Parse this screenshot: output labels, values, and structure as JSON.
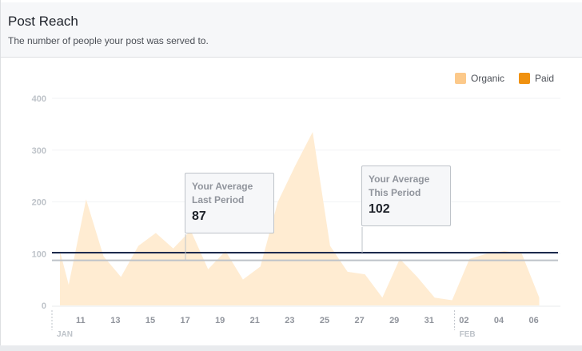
{
  "header": {
    "title": "Post Reach",
    "subtitle": "The number of people your post was served to."
  },
  "legend": [
    {
      "label": "Organic",
      "color": "#fcc98a"
    },
    {
      "label": "Paid",
      "color": "#f0910f"
    }
  ],
  "callouts": {
    "last": {
      "line1": "Your Average",
      "line2": "Last Period",
      "value": "87"
    },
    "this": {
      "line1": "Your Average",
      "line2": "This Period",
      "value": "102"
    }
  },
  "chart_data": {
    "type": "area",
    "title": "Post Reach",
    "ylim": [
      0,
      400
    ],
    "yticks": [
      0,
      100,
      200,
      300,
      400
    ],
    "x_tick_labels": [
      "11",
      "13",
      "15",
      "17",
      "19",
      "21",
      "23",
      "25",
      "27",
      "29",
      "31",
      "02",
      "04",
      "06"
    ],
    "x_tick_day_index": [
      1,
      3,
      5,
      7,
      9,
      11,
      13,
      15,
      17,
      19,
      21,
      23,
      25,
      27
    ],
    "month_labels": [
      {
        "label": "JAN",
        "day_index": 0
      },
      {
        "label": "FEB",
        "day_index": 22
      }
    ],
    "series": [
      {
        "name": "Organic",
        "color": "#fcc98a",
        "points": [
          [
            0,
            105
          ],
          [
            0.5,
            40
          ],
          [
            1.5,
            205
          ],
          [
            2.5,
            95
          ],
          [
            3.5,
            55
          ],
          [
            4.5,
            115
          ],
          [
            5.5,
            140
          ],
          [
            6.5,
            110
          ],
          [
            7.5,
            145
          ],
          [
            8.5,
            70
          ],
          [
            9.5,
            105
          ],
          [
            10.5,
            50
          ],
          [
            11.5,
            75
          ],
          [
            12.5,
            200
          ],
          [
            13.5,
            270
          ],
          [
            14.5,
            335
          ],
          [
            15.5,
            115
          ],
          [
            16.5,
            65
          ],
          [
            17.5,
            60
          ],
          [
            18.5,
            15
          ],
          [
            19.5,
            90
          ],
          [
            20.5,
            55
          ],
          [
            21.5,
            15
          ],
          [
            22.5,
            10
          ],
          [
            23.5,
            90
          ],
          [
            24.5,
            100
          ],
          [
            25.5,
            105
          ],
          [
            26.5,
            100
          ],
          [
            27.5,
            15
          ]
        ]
      },
      {
        "name": "Paid",
        "color": "#f0910f",
        "points": []
      }
    ],
    "reference_lines": [
      {
        "label": "Your Average Last Period",
        "value": 87,
        "color": "#bec3c9"
      },
      {
        "label": "Your Average This Period",
        "value": 102,
        "color": "#1d2a4d"
      }
    ]
  }
}
